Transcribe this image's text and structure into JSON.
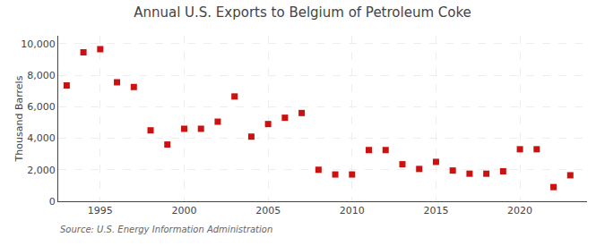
{
  "chart_data": {
    "type": "scatter",
    "title": "Annual U.S. Exports to Belgium of Petroleum Coke",
    "ylabel": "Thousand Barrels",
    "annotations": [
      "Source: U.S. Energy Information Administration"
    ],
    "x": [
      1993,
      1994,
      1995,
      1996,
      1997,
      1998,
      1999,
      2000,
      2001,
      2002,
      2003,
      2004,
      2005,
      2006,
      2007,
      2008,
      2009,
      2010,
      2011,
      2012,
      2013,
      2014,
      2015,
      2016,
      2017,
      2018,
      2019,
      2020,
      2021,
      2022,
      2023
    ],
    "values": [
      7350,
      9450,
      9650,
      7550,
      7250,
      4500,
      3600,
      4600,
      4600,
      5050,
      6650,
      4100,
      4900,
      5300,
      5600,
      2000,
      1700,
      1700,
      3250,
      3250,
      2350,
      2050,
      2500,
      1950,
      1750,
      1750,
      1900,
      3300,
      3300,
      900,
      1650
    ],
    "color": "#cc1111",
    "marker": "square",
    "xlim": [
      1992.5,
      2024
    ],
    "xticks": [
      1995,
      2000,
      2005,
      2010,
      2015,
      2020
    ],
    "ylim": [
      0,
      10500
    ],
    "yticks": [
      0,
      {
        "value": 2000,
        "label": "2,000"
      },
      {
        "value": 4000,
        "label": "4,000"
      },
      {
        "value": 6000,
        "label": "6,000"
      },
      {
        "value": 8000,
        "label": "8,000"
      },
      {
        "value": 10000,
        "label": "10,000"
      }
    ],
    "grid": true
  }
}
